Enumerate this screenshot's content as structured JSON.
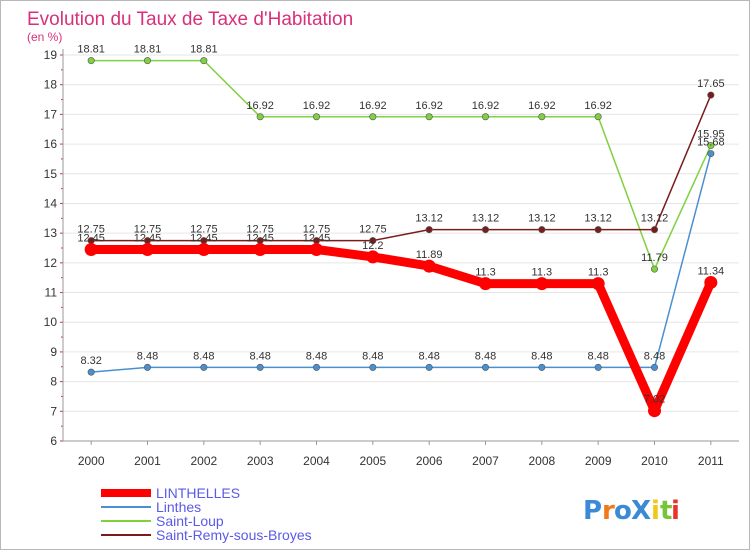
{
  "chart_data": {
    "type": "line",
    "title": "Evolution du Taux de Taxe d'Habitation",
    "subtitle": "(en %)",
    "xlabel": "",
    "ylabel": "",
    "ylim": [
      6,
      19
    ],
    "yticks": [
      "6",
      "7",
      "8",
      "9",
      "10",
      "11",
      "12",
      "13",
      "14",
      "15",
      "16",
      "17",
      "18",
      "19"
    ],
    "categories": [
      "2000",
      "2001",
      "2002",
      "2003",
      "2004",
      "2005",
      "2006",
      "2007",
      "2008",
      "2009",
      "2010",
      "2011"
    ],
    "grid": "horizontal",
    "legend_position": "bottom-left",
    "series": [
      {
        "name": "LINTHELLES",
        "color": "#ff0000",
        "values": [
          12.45,
          12.45,
          12.45,
          12.45,
          12.45,
          12.2,
          11.89,
          11.3,
          11.3,
          11.3,
          7.02,
          11.34
        ],
        "labels": [
          "12.45",
          "12.45",
          "12.45",
          "12.45",
          "12.45",
          "12.2",
          "11.89",
          "11.3",
          "11.3",
          "11.3",
          "7.02",
          "11.34"
        ]
      },
      {
        "name": "Linthes",
        "color": "#4a90d0",
        "values": [
          8.32,
          8.48,
          8.48,
          8.48,
          8.48,
          8.48,
          8.48,
          8.48,
          8.48,
          8.48,
          8.48,
          15.68
        ],
        "labels": [
          "8.32",
          "8.48",
          "8.48",
          "8.48",
          "8.48",
          "8.48",
          "8.48",
          "8.48",
          "8.48",
          "8.48",
          "8.48",
          "15.68"
        ]
      },
      {
        "name": "Saint-Loup",
        "color": "#80d040",
        "values": [
          18.81,
          18.81,
          18.81,
          16.92,
          16.92,
          16.92,
          16.92,
          16.92,
          16.92,
          16.92,
          11.79,
          15.95
        ],
        "labels": [
          "18.81",
          "18.81",
          "18.81",
          "16.92",
          "16.92",
          "16.92",
          "16.92",
          "16.92",
          "16.92",
          "16.92",
          "11.79",
          "15.95"
        ]
      },
      {
        "name": "Saint-Remy-sous-Broyes",
        "color": "#7a1c1c",
        "values": [
          12.75,
          12.75,
          12.75,
          12.75,
          12.75,
          12.75,
          13.12,
          13.12,
          13.12,
          13.12,
          13.12,
          17.65
        ],
        "labels": [
          "12.75",
          "12.75",
          "12.75",
          "12.75",
          "12.75",
          "12.75",
          "13.12",
          "13.12",
          "13.12",
          "13.12",
          "13.12",
          "17.65"
        ]
      }
    ]
  },
  "legend_text_color": "#5a5ae8",
  "logo": {
    "text": "ProXiti",
    "letters": [
      "P",
      "r",
      "o",
      "X",
      "i",
      "t",
      "i"
    ],
    "colors": [
      "#3a8ad6",
      "#f07a1a",
      "#3a8ad6",
      "#3a8ad6",
      "#f0c81a",
      "#7ac43a",
      "#e8342a"
    ]
  }
}
